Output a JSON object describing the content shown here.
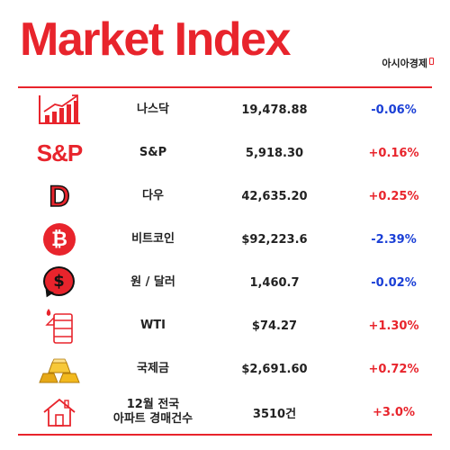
{
  "header": {
    "title": "Market Index",
    "brand": "아시아경제"
  },
  "colors": {
    "accent": "#e8242c",
    "up": "#e8242c",
    "down": "#1a3fd6"
  },
  "rows": [
    {
      "icon": "bar-chart-icon",
      "name": "나스닥",
      "value": "19,478.88",
      "change": "-0.06%",
      "direction": "down",
      "icon_text": ""
    },
    {
      "icon": "sp-logo-icon",
      "name": "S&P",
      "value": "5,918.30",
      "change": "+0.16%",
      "direction": "up",
      "icon_text": "S&P"
    },
    {
      "icon": "dow-logo-icon",
      "name": "다우",
      "value": "42,635.20",
      "change": "+0.25%",
      "direction": "up",
      "icon_text": "D"
    },
    {
      "icon": "bitcoin-icon",
      "name": "비트코인",
      "value": "$92,223.6",
      "change": "-2.39%",
      "direction": "down",
      "icon_text": "₿"
    },
    {
      "icon": "dollar-speech-icon",
      "name": "원 / 달러",
      "value": "1,460.7",
      "change": "-0.02%",
      "direction": "down",
      "icon_text": "$"
    },
    {
      "icon": "oil-barrel-icon",
      "name": "WTI",
      "value": "$74.27",
      "change": "+1.30%",
      "direction": "up",
      "icon_text": ""
    },
    {
      "icon": "gold-bars-icon",
      "name": "국제금",
      "value": "$2,691.60",
      "change": "+0.72%",
      "direction": "up",
      "icon_text": ""
    },
    {
      "icon": "house-icon",
      "name": "12월 전국\n아파트 경매건수",
      "value": "3510건",
      "change": "+3.0%",
      "direction": "up",
      "icon_text": ""
    }
  ]
}
